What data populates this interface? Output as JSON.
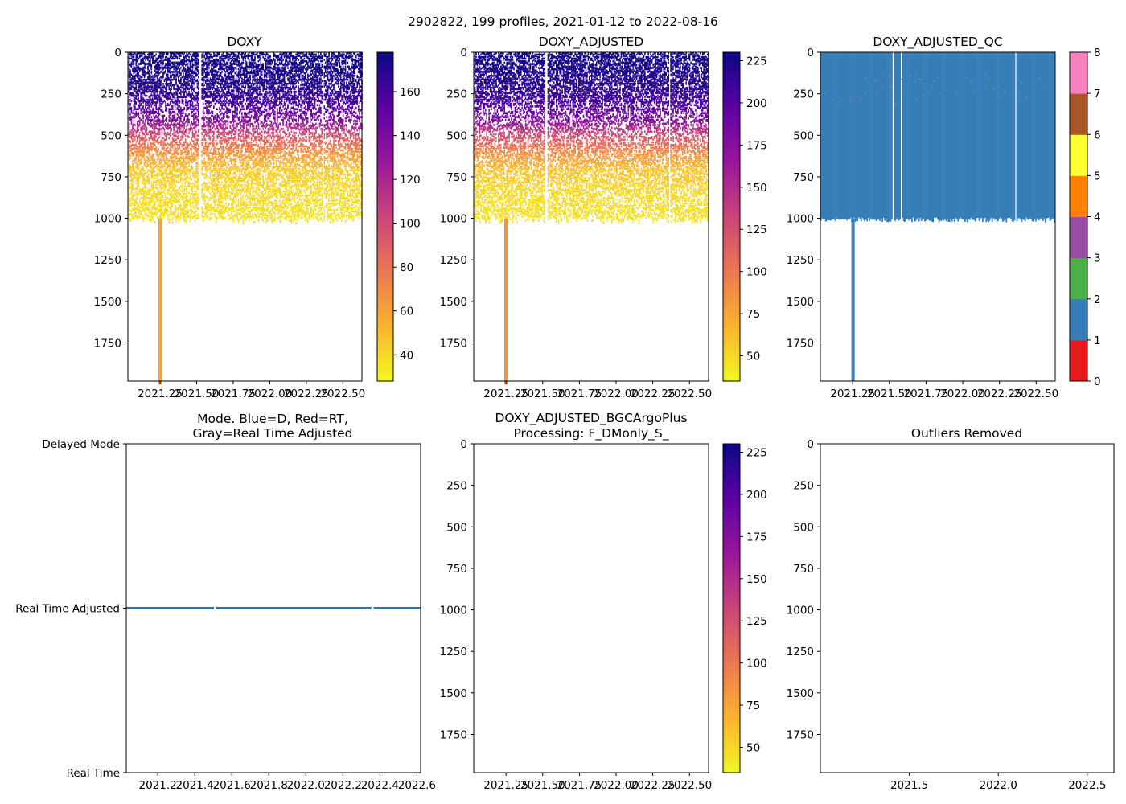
{
  "figure": {
    "suptitle": "2902822, 199 profiles, 2021-01-12 to 2022-08-16"
  },
  "colors": {
    "qc_palette": [
      "#e41a1c",
      "#377eb8",
      "#4daf4a",
      "#984ea3",
      "#ff7f00",
      "#ffff33",
      "#a65628",
      "#f781bf",
      "#999999"
    ],
    "plasma_stops": [
      "#0d0887",
      "#5b02a3",
      "#9a179b",
      "#cb4678",
      "#eb7852",
      "#fbb32f",
      "#f0f921"
    ],
    "mode_line": "#1f77b4",
    "qc_fill": "#377eb8"
  },
  "chart_data": [
    {
      "id": "doxy",
      "type": "heatmap",
      "title": "DOXY",
      "xlabel": "",
      "ylabel": "",
      "xlim": [
        2021.03,
        2022.63
      ],
      "ylim": [
        1980,
        0
      ],
      "xticks": [
        2021.25,
        2021.5,
        2021.75,
        2022.0,
        2022.25,
        2022.5
      ],
      "xtick_labels": [
        "2021.25",
        "2021.50",
        "2021.75",
        "2022.00",
        "2022.25",
        "2022.50"
      ],
      "yticks": [
        0,
        250,
        500,
        750,
        1000,
        1250,
        1500,
        1750
      ],
      "ytick_labels": [
        "0",
        "250",
        "500",
        "750",
        "1000",
        "1250",
        "1500",
        "1750"
      ],
      "colorbar": {
        "cmap": "plasma_r",
        "vmin": 28,
        "vmax": 178,
        "ticks": [
          40,
          60,
          80,
          100,
          120,
          140,
          160
        ],
        "tick_labels": [
          "40",
          "60",
          "80",
          "100",
          "120",
          "140",
          "160"
        ]
      },
      "profile": {
        "depths": [
          0,
          200,
          300,
          400,
          450,
          500,
          600,
          700,
          800,
          900,
          1000
        ],
        "values": [
          178,
          170,
          160,
          140,
          115,
          95,
          65,
          45,
          40,
          38,
          36
        ]
      },
      "deep_profile": {
        "time": 2021.25,
        "depth_range": [
          1000,
          1980
        ],
        "value": 60
      },
      "data_gaps": [
        2021.52,
        2022.36
      ]
    },
    {
      "id": "doxy-adjusted",
      "type": "heatmap",
      "title": "DOXY_ADJUSTED",
      "xlabel": "",
      "ylabel": "",
      "xlim": [
        2021.03,
        2022.63
      ],
      "ylim": [
        1980,
        0
      ],
      "xticks": [
        2021.25,
        2021.5,
        2021.75,
        2022.0,
        2022.25,
        2022.5
      ],
      "xtick_labels": [
        "2021.25",
        "2021.50",
        "2021.75",
        "2022.00",
        "2022.25",
        "2022.50"
      ],
      "yticks": [
        0,
        250,
        500,
        750,
        1000,
        1250,
        1500,
        1750
      ],
      "ytick_labels": [
        "0",
        "250",
        "500",
        "750",
        "1000",
        "1250",
        "1500",
        "1750"
      ],
      "colorbar": {
        "cmap": "plasma_r",
        "vmin": 35,
        "vmax": 230,
        "ticks": [
          50,
          75,
          100,
          125,
          150,
          175,
          200,
          225
        ],
        "tick_labels": [
          "50",
          "75",
          "100",
          "125",
          "150",
          "175",
          "200",
          "225"
        ]
      },
      "profile": {
        "depths": [
          0,
          200,
          300,
          400,
          450,
          500,
          600,
          700,
          800,
          900,
          1000
        ],
        "values": [
          228,
          218,
          205,
          180,
          150,
          125,
          88,
          60,
          52,
          48,
          46
        ]
      },
      "deep_profile": {
        "time": 2021.25,
        "depth_range": [
          1000,
          1980
        ],
        "value": 85
      },
      "data_gaps": [
        2021.52,
        2022.36
      ]
    },
    {
      "id": "doxy-adjusted-qc",
      "type": "heatmap",
      "title": "DOXY_ADJUSTED_QC",
      "xlabel": "",
      "ylabel": "",
      "xlim": [
        2021.03,
        2022.63
      ],
      "ylim": [
        1980,
        0
      ],
      "xticks": [
        2021.25,
        2021.5,
        2021.75,
        2022.0,
        2022.25,
        2022.5
      ],
      "xtick_labels": [
        "2021.25",
        "2021.50",
        "2021.75",
        "2022.00",
        "2022.25",
        "2022.50"
      ],
      "yticks": [
        0,
        250,
        500,
        750,
        1000,
        1250,
        1500,
        1750
      ],
      "ytick_labels": [
        "0",
        "250",
        "500",
        "750",
        "1000",
        "1250",
        "1500",
        "1750"
      ],
      "colorbar": {
        "cmap": "qc",
        "vmin": 0,
        "vmax": 8,
        "ticks": [
          0,
          1,
          2,
          3,
          4,
          5,
          6,
          7,
          8
        ],
        "tick_labels": [
          "0",
          "1",
          "2",
          "3",
          "4",
          "5",
          "6",
          "7",
          "8"
        ]
      },
      "qc_value": 1,
      "bottom_depth": 1010,
      "deep_profile": {
        "time": 2021.25,
        "depth_range": [
          1000,
          1980
        ],
        "qc": 1
      },
      "data_gaps": [
        2021.52,
        2021.58,
        2022.36
      ]
    },
    {
      "id": "mode",
      "type": "line",
      "title": "Mode. Blue=D, Red=RT,\nGray=Real Time Adjusted",
      "title_lines": [
        "Mode. Blue=D, Red=RT,",
        "Gray=Real Time Adjusted"
      ],
      "xlabel": "",
      "ylabel": "",
      "xlim": [
        2021.03,
        2022.62
      ],
      "ylim": [
        0,
        2
      ],
      "xticks": [
        2021.2,
        2021.4,
        2021.6,
        2021.8,
        2022.0,
        2022.2,
        2022.4,
        2022.6
      ],
      "xtick_labels": [
        "2021.2",
        "2021.4",
        "2021.6",
        "2021.8",
        "2022.0",
        "2022.2",
        "2022.4",
        "2022.6"
      ],
      "yticks": [
        0,
        1,
        2
      ],
      "ytick_labels": [
        "Real Time",
        "Real Time Adjusted",
        "Delayed Mode"
      ],
      "series": [
        {
          "name": "mode",
          "x_range": [
            2021.03,
            2022.62
          ],
          "value": 1,
          "gaps": [
            2021.51,
            2022.36
          ]
        }
      ]
    },
    {
      "id": "bgcargoplus",
      "type": "heatmap",
      "title": "DOXY_ADJUSTED_BGCArgoPlus\nProcessing: F_DMonly_S_",
      "title_lines": [
        "DOXY_ADJUSTED_BGCArgoPlus",
        "Processing: F_DMonly_S_"
      ],
      "xlabel": "",
      "ylabel": "",
      "xlim": [
        2021.03,
        2022.63
      ],
      "ylim": [
        1980,
        0
      ],
      "xticks": [
        2021.25,
        2021.5,
        2021.75,
        2022.0,
        2022.25,
        2022.5
      ],
      "xtick_labels": [
        "2021.25",
        "2021.50",
        "2021.75",
        "2022.00",
        "2022.25",
        "2022.50"
      ],
      "yticks": [
        0,
        250,
        500,
        750,
        1000,
        1250,
        1500,
        1750
      ],
      "ytick_labels": [
        "0",
        "250",
        "500",
        "750",
        "1000",
        "1250",
        "1500",
        "1750"
      ],
      "colorbar": {
        "cmap": "plasma_r",
        "vmin": 35,
        "vmax": 230,
        "ticks": [
          50,
          75,
          100,
          125,
          150,
          175,
          200,
          225
        ],
        "tick_labels": [
          "50",
          "75",
          "100",
          "125",
          "150",
          "175",
          "200",
          "225"
        ]
      },
      "values": []
    },
    {
      "id": "outliers",
      "type": "scatter",
      "title": "Outliers Removed",
      "xlabel": "",
      "ylabel": "",
      "xlim": [
        2021.0,
        2022.65
      ],
      "ylim": [
        1980,
        0
      ],
      "xticks": [
        2021.5,
        2022.0,
        2022.5
      ],
      "xtick_labels": [
        "2021.5",
        "2022.0",
        "2022.5"
      ],
      "yticks": [
        0,
        250,
        500,
        750,
        1000,
        1250,
        1500,
        1750
      ],
      "ytick_labels": [
        "0",
        "250",
        "500",
        "750",
        "1000",
        "1250",
        "1500",
        "1750"
      ],
      "points": []
    }
  ]
}
